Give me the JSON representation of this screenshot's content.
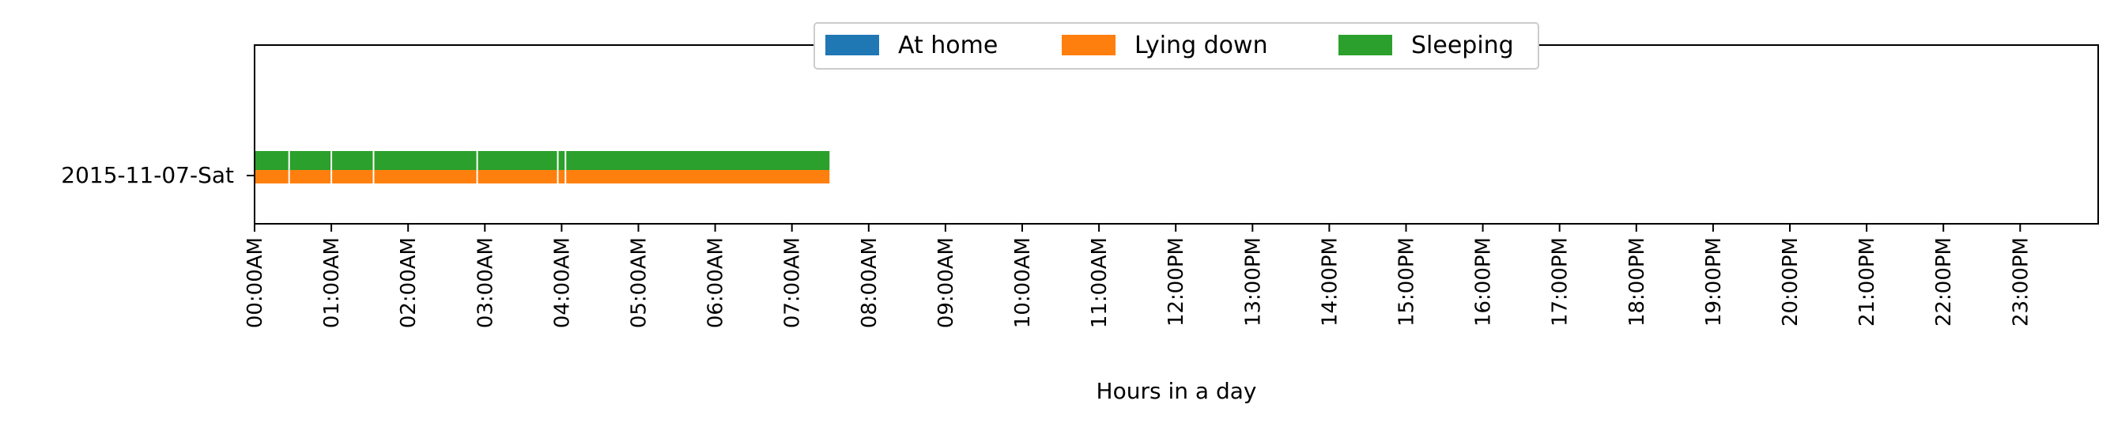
{
  "chart_data": {
    "type": "timeline",
    "title": "",
    "xlabel": "Hours in a day",
    "ylabel": "",
    "x_unit": "hours",
    "xlim": [
      0,
      24
    ],
    "ytick_labels": [
      "2015-11-07-Sat"
    ],
    "xtick_labels": [
      "00:00AM",
      "01:00AM",
      "02:00AM",
      "03:00AM",
      "04:00AM",
      "05:00AM",
      "06:00AM",
      "07:00AM",
      "08:00AM",
      "09:00AM",
      "10:00AM",
      "11:00AM",
      "12:00PM",
      "13:00PM",
      "14:00PM",
      "15:00PM",
      "16:00PM",
      "17:00PM",
      "18:00PM",
      "19:00PM",
      "20:00PM",
      "21:00PM",
      "22:00PM",
      "23:00PM"
    ],
    "legend_position": "top-center",
    "series": [
      {
        "name": "At home",
        "color": "#1f77b4",
        "intervals": []
      },
      {
        "name": "Lying down",
        "color": "#ff7f0e",
        "intervals": [
          [
            0.0,
            0.45
          ],
          [
            0.45,
            1.0
          ],
          [
            1.0,
            1.55
          ],
          [
            1.55,
            2.9
          ],
          [
            2.9,
            3.95
          ],
          [
            3.95,
            4.05
          ],
          [
            4.05,
            7.5
          ]
        ]
      },
      {
        "name": "Sleeping",
        "color": "#2ca02c",
        "intervals": [
          [
            0.0,
            0.45
          ],
          [
            0.45,
            1.0
          ],
          [
            1.0,
            1.55
          ],
          [
            1.55,
            2.9
          ],
          [
            2.9,
            3.95
          ],
          [
            3.95,
            4.05
          ],
          [
            4.05,
            7.5
          ]
        ]
      }
    ]
  }
}
